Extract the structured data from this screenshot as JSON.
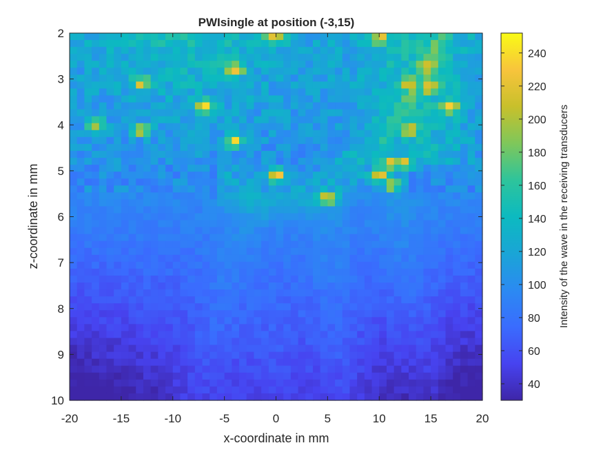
{
  "chart_data": {
    "type": "heatmap",
    "title": "PWIsingle at position (-3,15)",
    "xlabel": "x-coordinate in mm",
    "ylabel": "z-coordinate in mm",
    "colorbar_label": "Intensity of the wave in the receiving transducers",
    "colormap": "parula",
    "xlim": [
      -20,
      20
    ],
    "ylim": [
      10,
      2
    ],
    "clim": [
      30,
      252
    ],
    "x_ticks": [
      -20,
      -15,
      -10,
      -5,
      0,
      5,
      10,
      15,
      20
    ],
    "x_tick_labels": [
      "-20",
      "-15",
      "-10",
      "-5",
      "0",
      "5",
      "10",
      "15",
      "20"
    ],
    "y_ticks": [
      2,
      3,
      4,
      5,
      6,
      7,
      8,
      9,
      10
    ],
    "y_tick_labels": [
      "2",
      "3",
      "4",
      "5",
      "6",
      "7",
      "8",
      "9",
      "10"
    ],
    "colorbar_ticks": [
      40,
      60,
      80,
      100,
      120,
      140,
      160,
      180,
      200,
      220,
      240
    ],
    "colorbar_tick_labels": [
      "40",
      "60",
      "80",
      "100",
      "120",
      "140",
      "160",
      "180",
      "200",
      "220",
      "240"
    ],
    "grid_cols": 56,
    "grid_rows": 53,
    "hotspots": [
      {
        "x": 0.0,
        "z": 2.05,
        "value": 235
      },
      {
        "x": 10.0,
        "z": 2.1,
        "value": 225
      },
      {
        "x": -4.0,
        "z": 2.8,
        "value": 240
      },
      {
        "x": -13.0,
        "z": 3.1,
        "value": 220
      },
      {
        "x": 13.0,
        "z": 3.1,
        "value": 215
      },
      {
        "x": 14.7,
        "z": 2.7,
        "value": 205
      },
      {
        "x": 15.0,
        "z": 3.2,
        "value": 218
      },
      {
        "x": -7.0,
        "z": 3.6,
        "value": 232
      },
      {
        "x": 17.0,
        "z": 3.6,
        "value": 222
      },
      {
        "x": 13.0,
        "z": 4.1,
        "value": 225
      },
      {
        "x": -13.0,
        "z": 4.1,
        "value": 222
      },
      {
        "x": -17.5,
        "z": 4.0,
        "value": 195
      },
      {
        "x": -4.0,
        "z": 4.35,
        "value": 235
      },
      {
        "x": 0.0,
        "z": 5.1,
        "value": 232
      },
      {
        "x": 10.0,
        "z": 5.1,
        "value": 240
      },
      {
        "x": 11.0,
        "z": 4.85,
        "value": 230
      },
      {
        "x": 12.3,
        "z": 4.85,
        "value": 238
      },
      {
        "x": 11.3,
        "z": 5.3,
        "value": 218
      },
      {
        "x": 5.0,
        "z": 5.6,
        "value": 225
      }
    ]
  }
}
